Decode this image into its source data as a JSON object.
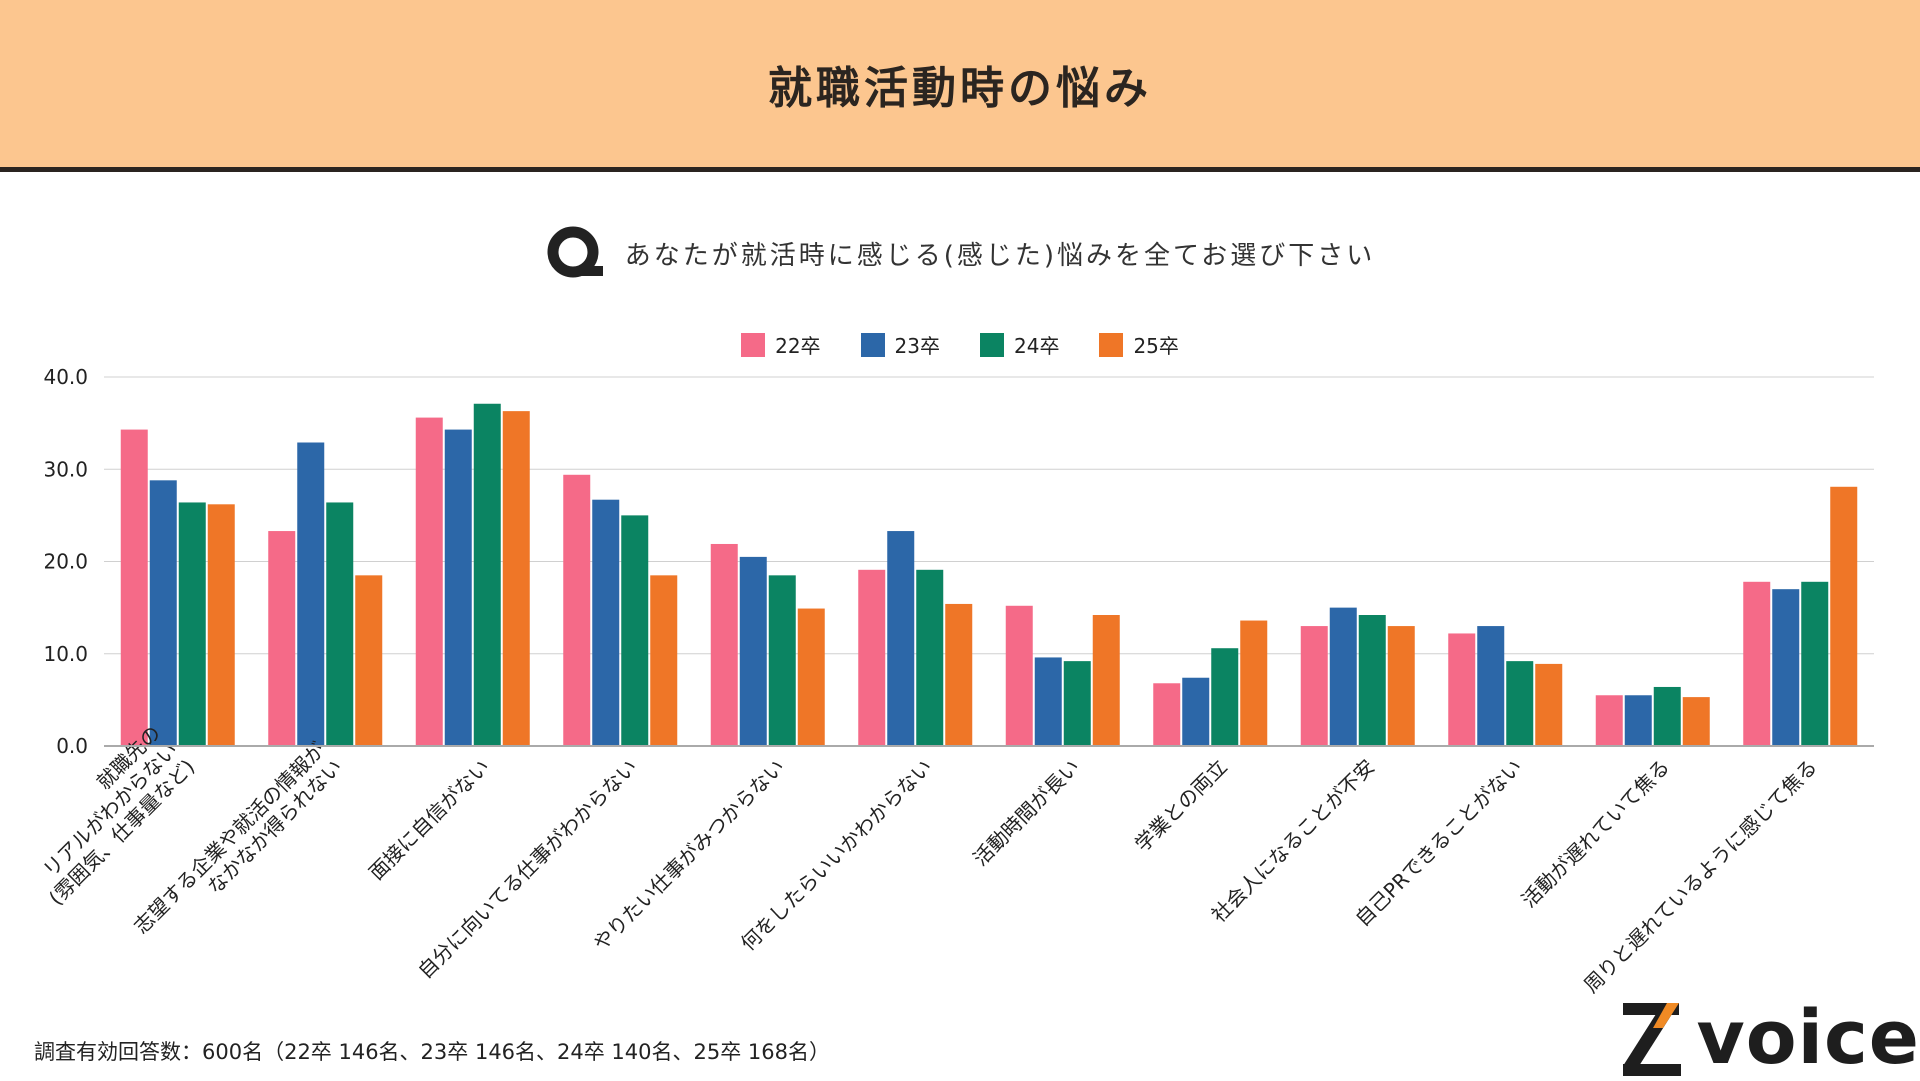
{
  "header": {
    "title": "就職活動時の悩み"
  },
  "question": {
    "icon": "q-icon",
    "text": "あなたが就活時に感じる(感じた)悩みを全てお選び下さい"
  },
  "footer": {
    "note": "調査有効回答数：600名（22卒 146名、23卒 146名、24卒 140名、25卒 168名）"
  },
  "logo": {
    "text": "Zvoice",
    "mark": "Z",
    "word": "voice"
  },
  "chart_data": {
    "type": "bar",
    "title": "",
    "xlabel": "",
    "ylabel": "",
    "ylim": [
      0,
      40
    ],
    "yticks": [
      "0.0",
      "10.0",
      "20.0",
      "30.0",
      "40.0"
    ],
    "grid": true,
    "legend": "top",
    "categories": [
      "就職先の\nリアルがわからない\n(雰囲気、仕事量など)",
      "志望する企業や就活の情報が\nなかなか得られない",
      "面接に自信がない",
      "自分に向いてる仕事がわからない",
      "やりたい仕事がみつからない",
      "何をしたらいいかわからない",
      "活動時間が長い",
      "学業との両立",
      "社会人になることが不安",
      "自己PRできることがない",
      "活動が遅れていて焦る",
      "周りと遅れているように感じて焦る"
    ],
    "series": [
      {
        "name": "22卒",
        "color": "#f56a88",
        "values": [
          34.3,
          23.3,
          35.6,
          29.4,
          21.9,
          19.1,
          15.2,
          6.8,
          13.0,
          12.2,
          5.5,
          17.8
        ]
      },
      {
        "name": "23卒",
        "color": "#2c67a8",
        "values": [
          28.8,
          32.9,
          34.3,
          26.7,
          20.5,
          23.3,
          9.6,
          7.4,
          15.0,
          13.0,
          5.5,
          17.0
        ]
      },
      {
        "name": "24卒",
        "color": "#0b8462",
        "values": [
          26.4,
          26.4,
          37.1,
          25.0,
          18.5,
          19.1,
          9.2,
          10.6,
          14.2,
          9.2,
          6.4,
          17.8
        ]
      },
      {
        "name": "25卒",
        "color": "#ef7627",
        "values": [
          26.2,
          18.5,
          36.3,
          18.5,
          14.9,
          15.4,
          14.2,
          13.6,
          13.0,
          8.9,
          5.3,
          28.1
        ]
      }
    ]
  }
}
